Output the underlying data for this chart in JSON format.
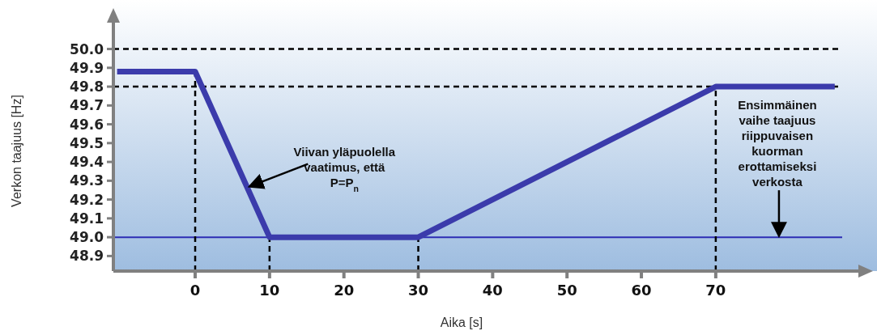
{
  "chart_data": {
    "type": "line",
    "xlabel": "Aika [s]",
    "ylabel": "Verkon taajuus [Hz]",
    "xlim": [
      -11,
      87
    ],
    "ylim": [
      48.82,
      50.14
    ],
    "xticks": [
      0,
      10,
      20,
      30,
      40,
      50,
      60,
      70
    ],
    "yticks": [
      {
        "value": 48.9,
        "label": "48.9"
      },
      {
        "value": 49.0,
        "label": "49.0"
      },
      {
        "value": 49.1,
        "label": "49.1"
      },
      {
        "value": 49.2,
        "label": "49.2"
      },
      {
        "value": 49.3,
        "label": "49.3"
      },
      {
        "value": 49.4,
        "label": "49.4"
      },
      {
        "value": 49.5,
        "label": "49.5"
      },
      {
        "value": 49.6,
        "label": "49.6"
      },
      {
        "value": 49.7,
        "label": "49.7"
      },
      {
        "value": 49.8,
        "label": "49.8"
      },
      {
        "value": 49.9,
        "label": "49.9"
      },
      {
        "value": 50.0,
        "label": "50.0"
      }
    ],
    "series": [
      {
        "color": "#3b3bab",
        "x": [
          -10.5,
          0,
          10,
          30,
          70,
          86
        ],
        "values": [
          49.88,
          49.88,
          49.0,
          49.0,
          49.8,
          49.8
        ]
      }
    ],
    "ref_lines": [
      {
        "axis": "y",
        "value": 50.0,
        "line_style": "dashed",
        "color": "#000000"
      },
      {
        "axis": "y",
        "value": 49.8,
        "line_style": "dashed",
        "color": "#000000"
      },
      {
        "axis": "y",
        "value": 49.0,
        "line_style": "solid",
        "color": "#2c2cb4"
      },
      {
        "axis": "x",
        "value": 0,
        "line_style": "dashed",
        "color": "#000000"
      },
      {
        "axis": "x",
        "value": 10,
        "line_style": "dashed",
        "color": "#000000"
      },
      {
        "axis": "x",
        "value": 30,
        "line_style": "dashed",
        "color": "#000000"
      },
      {
        "axis": "x",
        "value": 70,
        "line_style": "dashed",
        "color": "#000000"
      }
    ],
    "annotations": [
      {
        "text": "Viivan yläpuolella\nvaatimus, että\nP=P$_{n}$",
        "x": 7,
        "y": 49.26
      },
      {
        "text": "Ensimmäinen\nvaihe taajuus\nriippuvaisen\nkuorman\nerottamiseksi\nverkosta",
        "x": 78.5,
        "y": 49.0
      }
    ],
    "grid": false,
    "marker": "none",
    "line_style": "solid"
  }
}
